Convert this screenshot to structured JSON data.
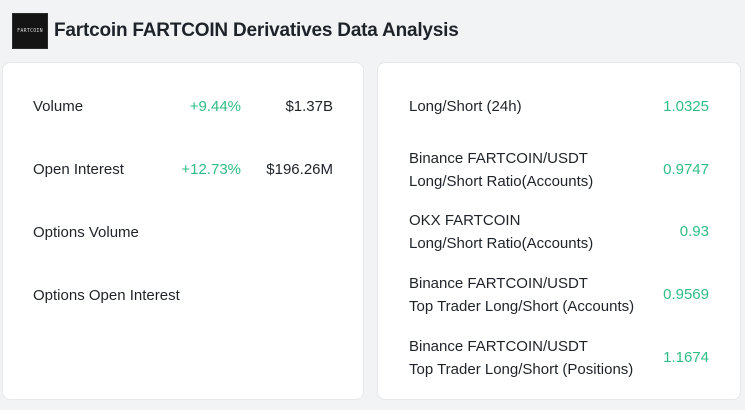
{
  "header": {
    "logo_text": "FARTCOIN",
    "title": "Fartcoin FARTCOIN Derivatives Data Analysis"
  },
  "left_panel": {
    "rows": [
      {
        "label": "Volume",
        "change": "+9.44%",
        "value": "$1.37B"
      },
      {
        "label": "Open Interest",
        "change": "+12.73%",
        "value": "$196.26M"
      },
      {
        "label": "Options Volume",
        "change": "",
        "value": ""
      },
      {
        "label": "Options Open Interest",
        "change": "",
        "value": ""
      }
    ]
  },
  "right_panel": {
    "rows": [
      {
        "line1": "Long/Short (24h)",
        "line2": "",
        "value": "1.0325"
      },
      {
        "line1": "Binance FARTCOIN/USDT",
        "line2": "Long/Short Ratio(Accounts)",
        "value": "0.9747"
      },
      {
        "line1": "OKX FARTCOIN",
        "line2": "Long/Short Ratio(Accounts)",
        "value": "0.93"
      },
      {
        "line1": "Binance FARTCOIN/USDT",
        "line2": "Top Trader Long/Short (Accounts)",
        "value": "0.9569"
      },
      {
        "line1": "Binance FARTCOIN/USDT",
        "line2": "Top Trader Long/Short (Positions)",
        "value": "1.1674"
      }
    ]
  },
  "colors": {
    "positive": "#2ebd85",
    "text": "#1e2329",
    "background": "#f2f3f5",
    "card": "#ffffff"
  }
}
